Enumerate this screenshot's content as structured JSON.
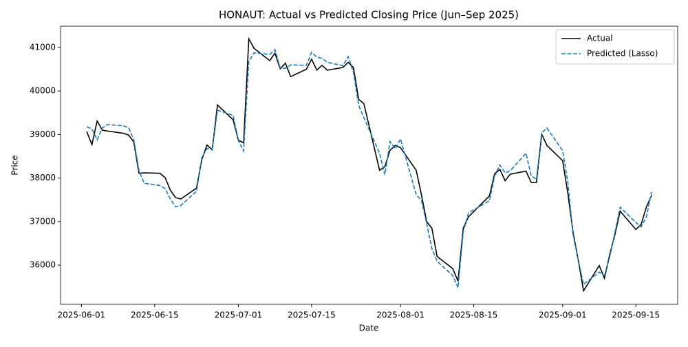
{
  "chart_data": {
    "type": "line",
    "title": "HONAUT: Actual vs Predicted Closing Price (Jun–Sep 2025)",
    "x_label": "Date",
    "y_label": "Price",
    "x": [
      "2025-06-02",
      "2025-06-03",
      "2025-06-04",
      "2025-06-05",
      "2025-06-06",
      "2025-06-09",
      "2025-06-10",
      "2025-06-11",
      "2025-06-12",
      "2025-06-13",
      "2025-06-16",
      "2025-06-17",
      "2025-06-18",
      "2025-06-19",
      "2025-06-20",
      "2025-06-23",
      "2025-06-24",
      "2025-06-25",
      "2025-06-26",
      "2025-06-27",
      "2025-06-30",
      "2025-07-01",
      "2025-07-02",
      "2025-07-03",
      "2025-07-04",
      "2025-07-07",
      "2025-07-08",
      "2025-07-09",
      "2025-07-10",
      "2025-07-11",
      "2025-07-14",
      "2025-07-15",
      "2025-07-16",
      "2025-07-17",
      "2025-07-18",
      "2025-07-21",
      "2025-07-22",
      "2025-07-23",
      "2025-07-24",
      "2025-07-25",
      "2025-07-28",
      "2025-07-29",
      "2025-07-30",
      "2025-07-31",
      "2025-08-01",
      "2025-08-04",
      "2025-08-05",
      "2025-08-06",
      "2025-08-07",
      "2025-08-08",
      "2025-08-11",
      "2025-08-12",
      "2025-08-13",
      "2025-08-14",
      "2025-08-18",
      "2025-08-19",
      "2025-08-20",
      "2025-08-21",
      "2025-08-22",
      "2025-08-25",
      "2025-08-26",
      "2025-08-27",
      "2025-08-28",
      "2025-08-29",
      "2025-09-01",
      "2025-09-02",
      "2025-09-03",
      "2025-09-04",
      "2025-09-05",
      "2025-09-08",
      "2025-09-09",
      "2025-09-10",
      "2025-09-11",
      "2025-09-12",
      "2025-09-15",
      "2025-09-16",
      "2025-09-17",
      "2025-09-18"
    ],
    "series": [
      {
        "name": "Actual",
        "color": "#000000",
        "dash": false,
        "values": [
          39070,
          38770,
          39310,
          39100,
          39080,
          39030,
          38990,
          38830,
          38110,
          38120,
          38110,
          38010,
          37720,
          37550,
          37520,
          37770,
          38420,
          38760,
          38650,
          39680,
          39340,
          38870,
          38810,
          41200,
          40980,
          40700,
          40870,
          40510,
          40640,
          40330,
          40500,
          40730,
          40480,
          40590,
          40480,
          40540,
          40660,
          40540,
          39810,
          39710,
          38180,
          38260,
          38640,
          38750,
          38700,
          38180,
          37620,
          37000,
          36850,
          36200,
          35920,
          35630,
          36850,
          37110,
          37590,
          38100,
          38200,
          37940,
          38090,
          38160,
          37900,
          37900,
          39010,
          38750,
          38400,
          37650,
          36750,
          36110,
          35410,
          35990,
          35700,
          36240,
          36700,
          37240,
          36820,
          36930,
          37330,
          37600
        ]
      },
      {
        "name": "Predicted (Lasso)",
        "color": "#1f77b4",
        "dash": true,
        "values": [
          39180,
          39130,
          38880,
          39150,
          39230,
          39200,
          39160,
          38880,
          38170,
          37880,
          37830,
          37760,
          37520,
          37340,
          37370,
          37700,
          38460,
          38680,
          38660,
          39560,
          39440,
          38860,
          38620,
          40680,
          40880,
          40840,
          40950,
          40530,
          40520,
          40600,
          40590,
          40890,
          40780,
          40750,
          40660,
          40580,
          40790,
          40430,
          39670,
          39390,
          38570,
          38080,
          38840,
          38670,
          38900,
          37620,
          37490,
          36960,
          36380,
          36090,
          35760,
          35480,
          36770,
          37200,
          37480,
          38050,
          38300,
          38120,
          38170,
          38570,
          38050,
          37970,
          39040,
          39150,
          38630,
          37900,
          36700,
          36110,
          35560,
          35840,
          35760,
          36190,
          36750,
          37330,
          36980,
          36880,
          37100,
          37680
        ]
      }
    ],
    "xlim": [
      "2025-05-28",
      "2025-09-23"
    ],
    "xticks": [
      "2025-06-01",
      "2025-06-15",
      "2025-07-01",
      "2025-07-15",
      "2025-08-01",
      "2025-08-15",
      "2025-09-01",
      "2025-09-15"
    ],
    "ylim": [
      35100,
      41490
    ],
    "yticks": [
      36000,
      37000,
      38000,
      39000,
      40000,
      41000
    ],
    "grid": false,
    "legend": "upper right"
  }
}
